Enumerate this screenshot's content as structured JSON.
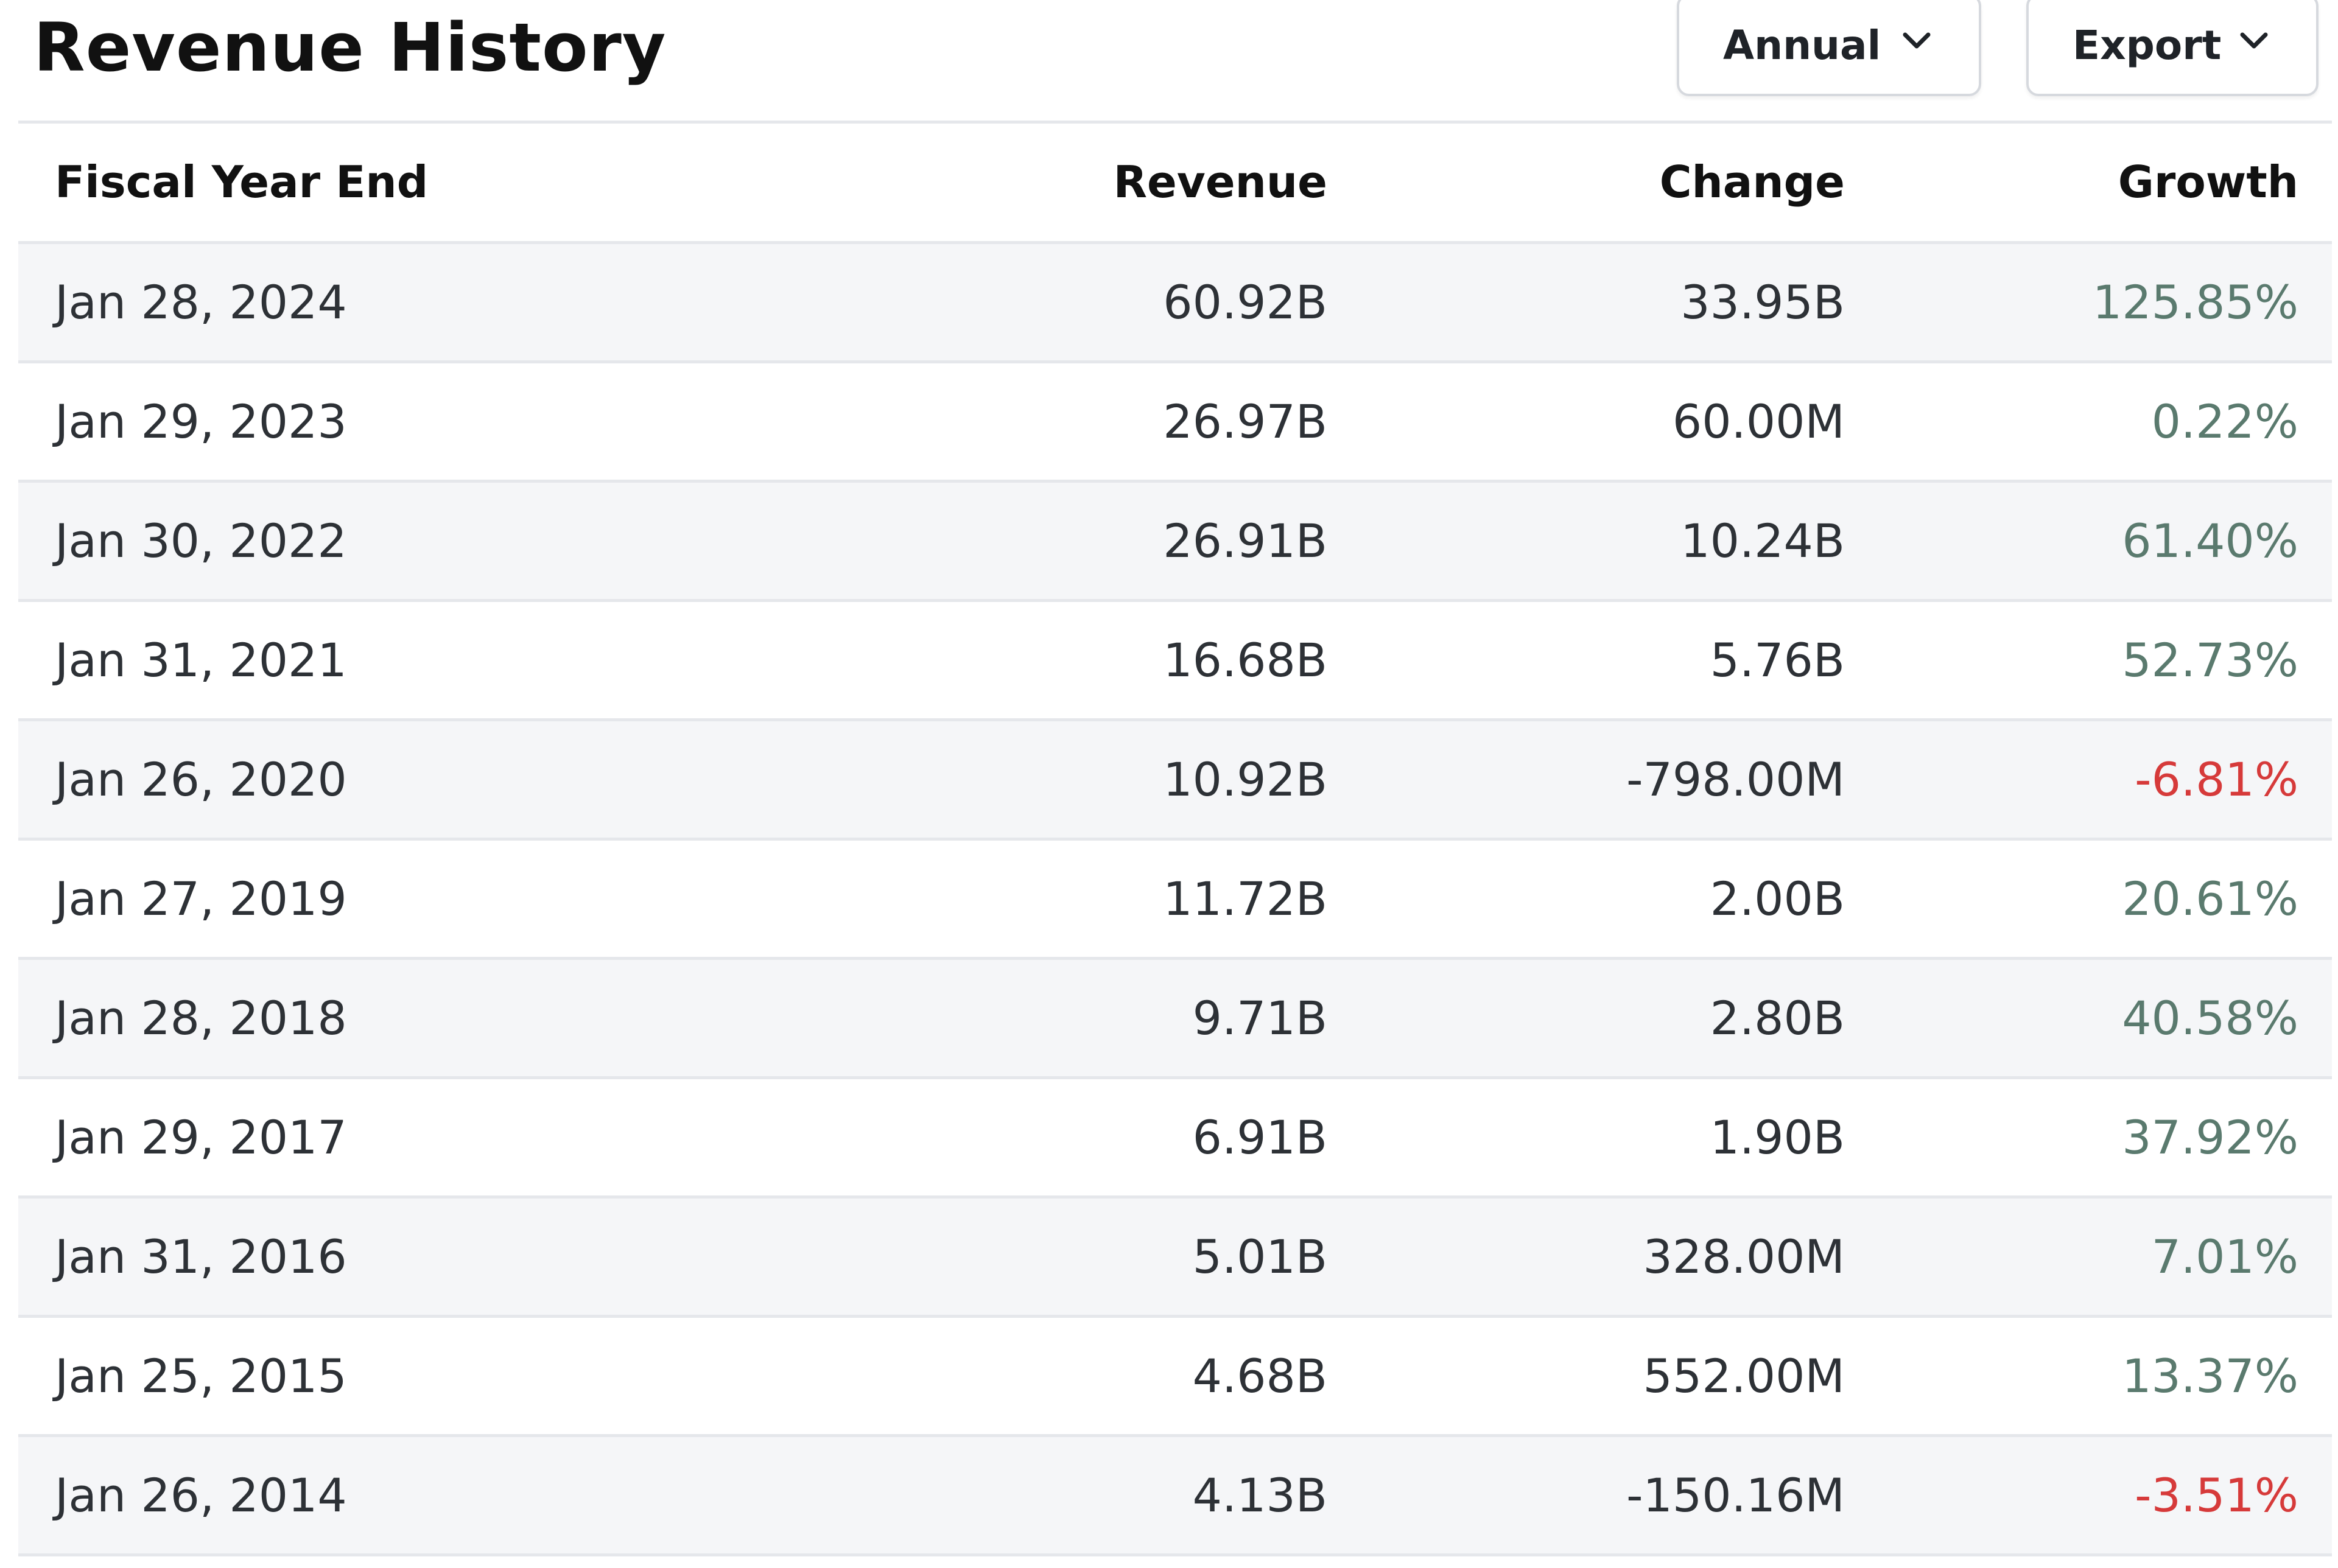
{
  "header": {
    "title": "Revenue History",
    "period_label": "Annual",
    "export_label": "Export"
  },
  "colors": {
    "positive_growth": "#5a7a6e",
    "negative_growth": "#d63a3a",
    "row_stripe": "#f5f6f8"
  },
  "table": {
    "columns": [
      "Fiscal Year End",
      "Revenue",
      "Change",
      "Growth"
    ],
    "rows": [
      {
        "date": "Jan 28, 2024",
        "revenue": "60.92B",
        "change": "33.95B",
        "growth": "125.85%"
      },
      {
        "date": "Jan 29, 2023",
        "revenue": "26.97B",
        "change": "60.00M",
        "growth": "0.22%"
      },
      {
        "date": "Jan 30, 2022",
        "revenue": "26.91B",
        "change": "10.24B",
        "growth": "61.40%"
      },
      {
        "date": "Jan 31, 2021",
        "revenue": "16.68B",
        "change": "5.76B",
        "growth": "52.73%"
      },
      {
        "date": "Jan 26, 2020",
        "revenue": "10.92B",
        "change": "-798.00M",
        "growth": "-6.81%"
      },
      {
        "date": "Jan 27, 2019",
        "revenue": "11.72B",
        "change": "2.00B",
        "growth": "20.61%"
      },
      {
        "date": "Jan 28, 2018",
        "revenue": "9.71B",
        "change": "2.80B",
        "growth": "40.58%"
      },
      {
        "date": "Jan 29, 2017",
        "revenue": "6.91B",
        "change": "1.90B",
        "growth": "37.92%"
      },
      {
        "date": "Jan 31, 2016",
        "revenue": "5.01B",
        "change": "328.00M",
        "growth": "7.01%"
      },
      {
        "date": "Jan 25, 2015",
        "revenue": "4.68B",
        "change": "552.00M",
        "growth": "13.37%"
      },
      {
        "date": "Jan 26, 2014",
        "revenue": "4.13B",
        "change": "-150.16M",
        "growth": "-3.51%"
      }
    ]
  }
}
